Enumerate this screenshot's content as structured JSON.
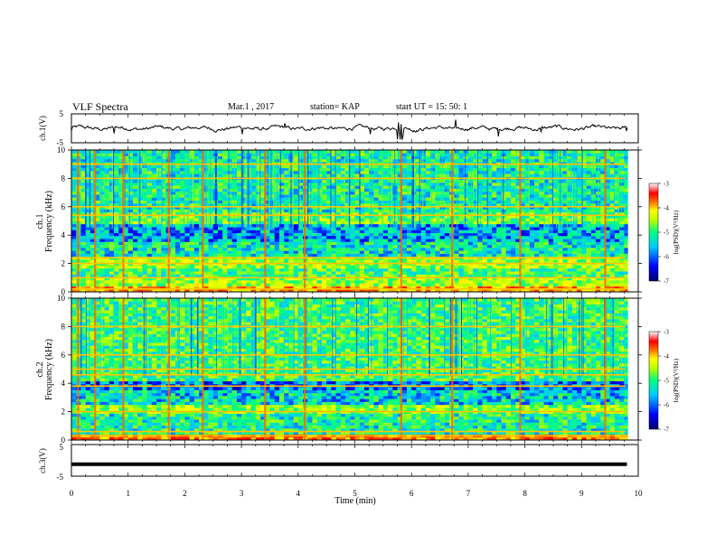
{
  "header": {
    "title": "VLF Spectra",
    "date": "Mar.1 , 2017",
    "station": "station= KAP",
    "start_ut": "start UT = 15: 50: 1"
  },
  "colors": {
    "colormap": [
      "#00006a",
      "#0000ff",
      "#00c8ff",
      "#00ff80",
      "#b4ff00",
      "#ffff00",
      "#ff6400",
      "#ff0000",
      "#ffffff"
    ],
    "trace": "#000000"
  },
  "chart_data": [
    {
      "type": "line",
      "name": "ch1",
      "ylabel": "ch.1(V)",
      "ylim": [
        -5,
        5
      ],
      "yticks": [
        "5",
        "-5"
      ],
      "xlim": [
        0,
        10
      ],
      "description_values": "noisy waveform around ~0 V, amplitude ~±2 V, spike near t=5.8 min"
    },
    {
      "type": "heatmap",
      "name": "ch1-spectrogram",
      "ylabel": "ch.1",
      "ylabel2": "Frequency (kHz)",
      "ylim": [
        0,
        10
      ],
      "yticks": [
        "0",
        "2",
        "4",
        "6",
        "8",
        "10"
      ],
      "xlim": [
        0,
        10
      ],
      "colorbar": {
        "label": "log(PSD)(V²/Hz)",
        "range": [
          -7,
          -3
        ],
        "ticks": [
          "-3",
          "-4",
          "-5",
          "-6",
          "-7"
        ]
      },
      "bands": [
        {
          "f0": 0,
          "f1": 0.4,
          "level": -4.2
        },
        {
          "f0": 0.4,
          "f1": 1.0,
          "level": -5.0
        },
        {
          "f0": 1.0,
          "f1": 1.6,
          "level": -5.4
        },
        {
          "f0": 1.6,
          "f1": 2.4,
          "level": -5.0
        },
        {
          "f0": 2.4,
          "f1": 3.6,
          "level": -5.7
        },
        {
          "f0": 3.6,
          "f1": 4.8,
          "level": -6.0
        },
        {
          "f0": 4.8,
          "f1": 5.6,
          "level": -5.2
        },
        {
          "f0": 5.6,
          "f1": 10,
          "level": -5.6
        }
      ],
      "lines_khz": [
        0.2,
        1.0,
        2.0,
        2.4,
        5.4,
        6.0,
        8.0,
        9.0
      ],
      "vertical_events_min": [
        0.1,
        0.4,
        0.9,
        1.7,
        2.3,
        3.4,
        4.1,
        5.8,
        6.7,
        7.9,
        9.4
      ]
    },
    {
      "type": "heatmap",
      "name": "ch2-spectrogram",
      "ylabel": "ch.2",
      "ylabel2": "Frequency (kHz)",
      "ylim": [
        0,
        10
      ],
      "yticks": [
        "0",
        "2",
        "4",
        "6",
        "8",
        "10"
      ],
      "xlim": [
        0,
        10
      ],
      "colorbar": {
        "label": "log(PSD)(V²/Hz)",
        "range": [
          -7,
          -3
        ],
        "ticks": [
          "-3",
          "-4",
          "-5",
          "-6",
          "-7"
        ]
      },
      "bands": [
        {
          "f0": 0,
          "f1": 0.5,
          "level": -4.0
        },
        {
          "f0": 0.5,
          "f1": 1.8,
          "level": -5.6
        },
        {
          "f0": 1.8,
          "f1": 2.6,
          "level": -5.1
        },
        {
          "f0": 2.6,
          "f1": 3.6,
          "level": -5.8
        },
        {
          "f0": 3.6,
          "f1": 4.2,
          "level": -6.2
        },
        {
          "f0": 4.2,
          "f1": 5.4,
          "level": -5.4
        },
        {
          "f0": 5.4,
          "f1": 10,
          "level": -5.4
        }
      ],
      "lines_khz": [
        0.3,
        0.6,
        2.0,
        3.8,
        4.6,
        5.0,
        6.0,
        8.0
      ],
      "vertical_events_min": [
        0.1,
        0.4,
        0.9,
        1.7,
        2.3,
        3.4,
        4.1,
        5.8,
        6.7,
        7.9,
        9.4
      ]
    },
    {
      "type": "line",
      "name": "ch3",
      "ylabel": "ch.3(V)",
      "ylim": [
        -5,
        5
      ],
      "yticks": [
        "5",
        "-5"
      ],
      "xlim": [
        0,
        10
      ],
      "xlabel": "Time (min)",
      "xticks": [
        "0",
        "1",
        "2",
        "3",
        "4",
        "5",
        "6",
        "7",
        "8",
        "9",
        "10"
      ],
      "constant_value": -1.2,
      "end_min": 9.8
    }
  ]
}
